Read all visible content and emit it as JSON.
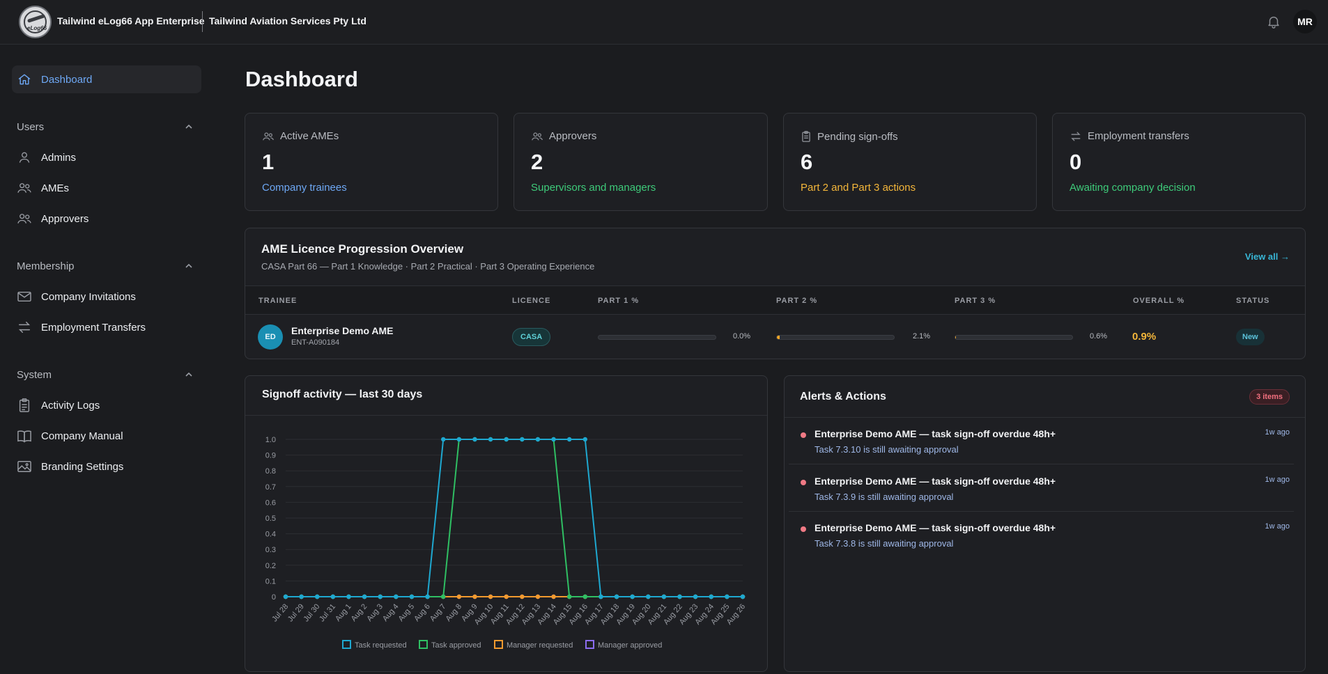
{
  "topbar": {
    "app_title": "Tailwind eLog66 App Enterprise",
    "company": "Tailwind Aviation Services Pty Ltd",
    "user_initials": "MR",
    "icons": [
      "bell-icon",
      "logo"
    ]
  },
  "sidebar": {
    "dashboard": "Dashboard",
    "sections": {
      "users": {
        "label": "Users",
        "items": [
          "Admins",
          "AMEs",
          "Approvers"
        ]
      },
      "membership": {
        "label": "Membership",
        "items": [
          "Company Invitations",
          "Employment Transfers"
        ]
      },
      "system": {
        "label": "System",
        "items": [
          "Activity Logs",
          "Company Manual",
          "Branding Settings"
        ]
      }
    },
    "active_color": "#6ea8f5"
  },
  "page": {
    "title": "Dashboard"
  },
  "stats": [
    {
      "label": "Active AMEs",
      "value": "1",
      "sub": "Company trainees",
      "color": "#6ea8f5",
      "icon": "users-icon"
    },
    {
      "label": "Approvers",
      "value": "2",
      "sub": "Supervisors and managers",
      "color": "#3ecb7a",
      "icon": "approvers-icon"
    },
    {
      "label": "Pending sign-offs",
      "value": "6",
      "sub": "Part 2 and Part 3 actions",
      "color": "#f4b63a",
      "icon": "clipboard-icon"
    },
    {
      "label": "Employment transfers",
      "value": "0",
      "sub": "Awaiting company decision",
      "color": "#3ecb7a",
      "icon": "transfer-icon"
    }
  ],
  "progression": {
    "title": "AME Licence Progression Overview",
    "subtitle": "CASA Part 66 — Part 1 Knowledge · Part 2 Practical · Part 3 Operating Experience",
    "view_all": "View all →",
    "columns": [
      "TRAINEE",
      "LICENCE",
      "PART 1 %",
      "PART 2 %",
      "PART 3 %",
      "OVERALL %",
      "STATUS"
    ],
    "rows": [
      {
        "initials": "ED",
        "name": "Enterprise Demo AME",
        "code": "ENT-A090184",
        "licence": "CASA",
        "part1": "0.0%",
        "part1_value": 0.0,
        "part2": "2.1%",
        "part2_value": 2.1,
        "part3": "0.6%",
        "part3_value": 0.6,
        "overall": "0.9%",
        "status": "New"
      }
    ]
  },
  "signoff": {
    "title": "Signoff activity — last 30 days"
  },
  "chart_data": {
    "type": "line",
    "categories": [
      "Jul 28",
      "Jul 29",
      "Jul 30",
      "Jul 31",
      "Aug 1",
      "Aug 2",
      "Aug 3",
      "Aug 4",
      "Aug 5",
      "Aug 6",
      "Aug 7",
      "Aug 8",
      "Aug 9",
      "Aug 10",
      "Aug 11",
      "Aug 12",
      "Aug 13",
      "Aug 14",
      "Aug 15",
      "Aug 16",
      "Aug 17",
      "Aug 18",
      "Aug 19",
      "Aug 20",
      "Aug 21",
      "Aug 22",
      "Aug 23",
      "Aug 24",
      "Aug 25",
      "Aug 26"
    ],
    "ylim": [
      0,
      1
    ],
    "yticks": [
      "0",
      "0.1",
      "0.2",
      "0.3",
      "0.4",
      "0.5",
      "0.6",
      "0.7",
      "0.8",
      "0.9",
      "1.0"
    ],
    "series": [
      {
        "name": "Manager approved",
        "color": "#8b6cf0",
        "values": [
          0,
          0,
          0,
          0,
          0,
          0,
          0,
          0,
          0,
          0,
          0,
          0,
          0,
          0,
          0,
          0,
          0,
          0,
          0,
          0,
          0,
          0,
          0,
          0,
          0,
          0,
          0,
          0,
          0,
          0
        ]
      },
      {
        "name": "Manager requested",
        "color": "#f29a2e",
        "values": [
          0,
          0,
          0,
          0,
          0,
          0,
          0,
          0,
          0,
          0,
          0,
          0,
          0,
          0,
          0,
          0,
          0,
          0,
          0,
          0,
          0,
          0,
          0,
          0,
          0,
          0,
          0,
          0,
          0,
          0
        ]
      },
      {
        "name": "Task approved",
        "color": "#2fbf63",
        "values": [
          0,
          0,
          0,
          0,
          0,
          0,
          0,
          0,
          0,
          0,
          0,
          1,
          1,
          1,
          1,
          1,
          1,
          1,
          0,
          0,
          0,
          0,
          0,
          0,
          0,
          0,
          0,
          0,
          0,
          0
        ]
      },
      {
        "name": "Task requested",
        "color": "#1ea8d0",
        "values": [
          0,
          0,
          0,
          0,
          0,
          0,
          0,
          0,
          0,
          0,
          1,
          1,
          1,
          1,
          1,
          1,
          1,
          1,
          1,
          1,
          0,
          0,
          0,
          0,
          0,
          0,
          0,
          0,
          0,
          0
        ]
      }
    ],
    "legend_order": [
      "Task requested",
      "Task approved",
      "Manager requested",
      "Manager approved"
    ],
    "grid": true,
    "legend": "bottom"
  },
  "alerts": {
    "title": "Alerts & Actions",
    "count": "3 items",
    "items": [
      {
        "title": "Enterprise Demo AME — task sign-off overdue 48h+",
        "sub": "Task 7.3.10 is still awaiting approval",
        "time": "1w ago"
      },
      {
        "title": "Enterprise Demo AME — task sign-off overdue 48h+",
        "sub": "Task 7.3.9 is still awaiting approval",
        "time": "1w ago"
      },
      {
        "title": "Enterprise Demo AME — task sign-off overdue 48h+",
        "sub": "Task 7.3.8 is still awaiting approval",
        "time": "1w ago"
      }
    ]
  }
}
